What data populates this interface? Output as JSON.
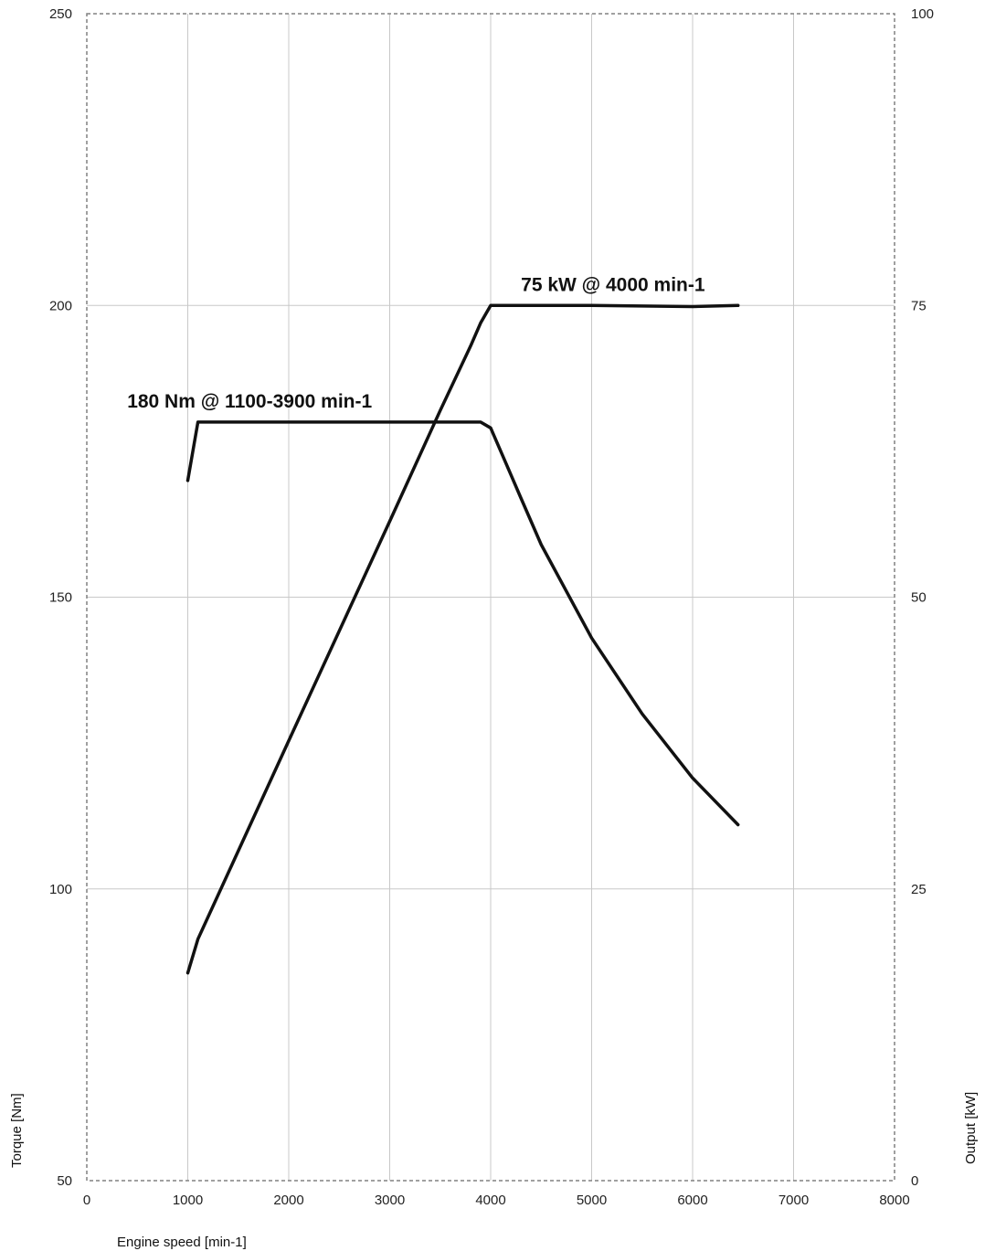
{
  "chart_data": {
    "type": "line",
    "title": "",
    "xlabel": "Engine speed [min-1]",
    "ylabel": "Torque [Nm]",
    "y2label": "Output [kW]",
    "xlim": [
      0,
      8000
    ],
    "ylim": [
      50,
      250
    ],
    "y2lim": [
      0,
      100
    ],
    "x_ticks": [
      "0",
      "1000",
      "2000",
      "3000",
      "4000",
      "5000",
      "6000",
      "7000",
      "8000"
    ],
    "y_ticks": [
      "50",
      "100",
      "150",
      "200",
      "250"
    ],
    "y2_ticks": [
      "0",
      "25",
      "50",
      "75",
      "100"
    ],
    "grid": true,
    "series": [
      {
        "axis": "left",
        "x": [
          1000,
          1100,
          3900,
          4000,
          4200,
          4300,
          4500,
          5000,
          5500,
          6000,
          6450
        ],
        "y": [
          170,
          180,
          180,
          179,
          171,
          167,
          159,
          143,
          130,
          119,
          111
        ]
      },
      {
        "axis": "right",
        "x": [
          1000,
          1100,
          2000,
          3000,
          3500,
          3800,
          3900,
          4000,
          4500,
          5000,
          6000,
          6450
        ],
        "y": [
          17.8,
          20.7,
          37.7,
          56.5,
          66,
          71.5,
          73.5,
          75,
          75,
          75,
          74.9,
          75
        ]
      }
    ],
    "annotations": [
      {
        "text": "180 Nm @ 1100-3900 min-1",
        "x": 400,
        "y": 182.5
      },
      {
        "text": "75 kW @ 4000 min-1",
        "x": 4300,
        "y": 202.5
      }
    ]
  }
}
